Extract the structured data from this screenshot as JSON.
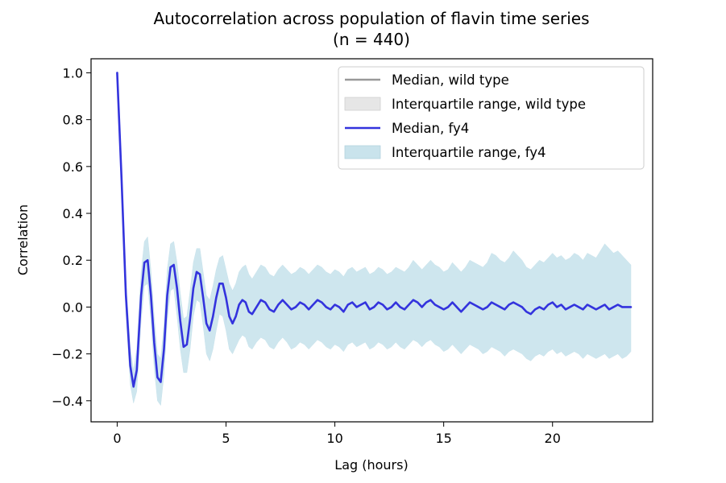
{
  "chart_data": {
    "type": "line",
    "title": "Autocorrelation across population of flavin time series",
    "subtitle": "(n = 440)",
    "xlabel": "Lag (hours)",
    "ylabel": "Correlation",
    "xlim": [
      -1.2,
      24.6
    ],
    "ylim": [
      -0.49,
      1.06
    ],
    "xticks": [
      0,
      5,
      10,
      15,
      20
    ],
    "xtick_labels": [
      "0",
      "5",
      "10",
      "15",
      "20"
    ],
    "yticks": [
      -0.4,
      -0.2,
      0.0,
      0.2,
      0.4,
      0.6,
      0.8,
      1.0
    ],
    "ytick_labels": [
      "−0.4",
      "−0.2",
      "0.0",
      "0.2",
      "0.4",
      "0.6",
      "0.8",
      "1.0"
    ],
    "grid": false,
    "legend_position": "top-right",
    "legend": [
      {
        "label": "Median, wild type",
        "kind": "line",
        "color": "#999999"
      },
      {
        "label": "Interquartile range, wild type",
        "kind": "patch",
        "color": "#e6e6e6"
      },
      {
        "label": "Median, fy4",
        "kind": "line",
        "color": "#3333dd"
      },
      {
        "label": "Interquartile range, fy4",
        "kind": "patch",
        "color": "#c9e3ec"
      }
    ],
    "series": [
      {
        "name": "Median, fy4",
        "color": "#3333dd",
        "x": [
          0,
          0.2,
          0.4,
          0.6,
          0.75,
          0.9,
          1.1,
          1.25,
          1.4,
          1.55,
          1.7,
          1.85,
          2.0,
          2.15,
          2.3,
          2.45,
          2.6,
          2.75,
          2.9,
          3.05,
          3.2,
          3.35,
          3.5,
          3.65,
          3.8,
          3.95,
          4.1,
          4.25,
          4.4,
          4.55,
          4.7,
          4.85,
          5.0,
          5.15,
          5.3,
          5.45,
          5.6,
          5.75,
          5.9,
          6.05,
          6.2,
          6.4,
          6.6,
          6.8,
          7.0,
          7.2,
          7.4,
          7.6,
          7.8,
          8.0,
          8.2,
          8.4,
          8.6,
          8.8,
          9.0,
          9.2,
          9.4,
          9.6,
          9.8,
          10.0,
          10.2,
          10.4,
          10.6,
          10.8,
          11.0,
          11.2,
          11.4,
          11.6,
          11.8,
          12.0,
          12.2,
          12.4,
          12.6,
          12.8,
          13.0,
          13.2,
          13.4,
          13.6,
          13.8,
          14.0,
          14.2,
          14.4,
          14.6,
          14.8,
          15.0,
          15.2,
          15.4,
          15.6,
          15.8,
          16.0,
          16.2,
          16.4,
          16.6,
          16.8,
          17.0,
          17.2,
          17.4,
          17.6,
          17.8,
          18.0,
          18.2,
          18.4,
          18.6,
          18.8,
          19.0,
          19.2,
          19.4,
          19.6,
          19.8,
          20.0,
          20.2,
          20.4,
          20.6,
          20.8,
          21.0,
          21.2,
          21.4,
          21.6,
          21.8,
          22.0,
          22.2,
          22.4,
          22.6,
          22.8,
          23.0,
          23.2,
          23.4,
          23.6
        ],
        "values": [
          1.0,
          0.55,
          0.05,
          -0.25,
          -0.34,
          -0.27,
          0.05,
          0.19,
          0.2,
          0.05,
          -0.15,
          -0.3,
          -0.32,
          -0.18,
          0.05,
          0.17,
          0.18,
          0.08,
          -0.06,
          -0.17,
          -0.16,
          -0.05,
          0.08,
          0.15,
          0.14,
          0.04,
          -0.07,
          -0.1,
          -0.04,
          0.04,
          0.1,
          0.1,
          0.04,
          -0.04,
          -0.07,
          -0.04,
          0.01,
          0.03,
          0.02,
          -0.02,
          -0.03,
          0.0,
          0.03,
          0.02,
          -0.01,
          -0.02,
          0.01,
          0.03,
          0.01,
          -0.01,
          0.0,
          0.02,
          0.01,
          -0.01,
          0.01,
          0.03,
          0.02,
          0.0,
          -0.01,
          0.01,
          0.0,
          -0.02,
          0.01,
          0.02,
          0.0,
          0.01,
          0.02,
          -0.01,
          0.0,
          0.02,
          0.01,
          -0.01,
          0.0,
          0.02,
          0.0,
          -0.01,
          0.01,
          0.03,
          0.02,
          0.0,
          0.02,
          0.03,
          0.01,
          0.0,
          -0.01,
          0.0,
          0.02,
          0.0,
          -0.02,
          0.0,
          0.02,
          0.01,
          0.0,
          -0.01,
          0.0,
          0.02,
          0.01,
          0.0,
          -0.01,
          0.01,
          0.02,
          0.01,
          0.0,
          -0.02,
          -0.03,
          -0.01,
          0.0,
          -0.01,
          0.01,
          0.02,
          0.0,
          0.01,
          -0.01,
          0.0,
          0.01,
          0.0,
          -0.01,
          0.01,
          0.0,
          -0.01,
          0.0,
          0.01,
          -0.01,
          0.0,
          0.01,
          0.0,
          0.0,
          0.0
        ]
      },
      {
        "name": "Interquartile range, fy4",
        "color": "#c9e3ec",
        "x": [
          0,
          0.2,
          0.4,
          0.6,
          0.75,
          0.9,
          1.1,
          1.25,
          1.4,
          1.55,
          1.7,
          1.85,
          2.0,
          2.15,
          2.3,
          2.45,
          2.6,
          2.75,
          2.9,
          3.05,
          3.2,
          3.35,
          3.5,
          3.65,
          3.8,
          3.95,
          4.1,
          4.25,
          4.4,
          4.55,
          4.7,
          4.85,
          5.0,
          5.15,
          5.3,
          5.45,
          5.6,
          5.75,
          5.9,
          6.05,
          6.2,
          6.4,
          6.6,
          6.8,
          7.0,
          7.2,
          7.4,
          7.6,
          7.8,
          8.0,
          8.2,
          8.4,
          8.6,
          8.8,
          9.0,
          9.2,
          9.4,
          9.6,
          9.8,
          10.0,
          10.2,
          10.4,
          10.6,
          10.8,
          11.0,
          11.2,
          11.4,
          11.6,
          11.8,
          12.0,
          12.2,
          12.4,
          12.6,
          12.8,
          13.0,
          13.2,
          13.4,
          13.6,
          13.8,
          14.0,
          14.2,
          14.4,
          14.6,
          14.8,
          15.0,
          15.2,
          15.4,
          15.6,
          15.8,
          16.0,
          16.2,
          16.4,
          16.6,
          16.8,
          17.0,
          17.2,
          17.4,
          17.6,
          17.8,
          18.0,
          18.2,
          18.4,
          18.6,
          18.8,
          19.0,
          19.2,
          19.4,
          19.6,
          19.8,
          20.0,
          20.2,
          20.4,
          20.6,
          20.8,
          21.0,
          21.2,
          21.4,
          21.6,
          21.8,
          22.0,
          22.2,
          22.4,
          22.6,
          22.8,
          23.0,
          23.2,
          23.4,
          23.6
        ],
        "upper": [
          1.0,
          0.6,
          0.12,
          -0.17,
          -0.27,
          -0.18,
          0.15,
          0.28,
          0.3,
          0.16,
          -0.04,
          -0.2,
          -0.22,
          -0.07,
          0.16,
          0.27,
          0.28,
          0.19,
          0.06,
          -0.05,
          -0.04,
          0.07,
          0.19,
          0.25,
          0.25,
          0.15,
          0.05,
          0.03,
          0.09,
          0.16,
          0.21,
          0.22,
          0.16,
          0.1,
          0.07,
          0.1,
          0.15,
          0.17,
          0.18,
          0.14,
          0.12,
          0.15,
          0.18,
          0.17,
          0.14,
          0.13,
          0.16,
          0.18,
          0.16,
          0.14,
          0.15,
          0.17,
          0.16,
          0.14,
          0.16,
          0.18,
          0.17,
          0.15,
          0.14,
          0.16,
          0.15,
          0.13,
          0.16,
          0.17,
          0.15,
          0.16,
          0.17,
          0.14,
          0.15,
          0.17,
          0.16,
          0.14,
          0.15,
          0.17,
          0.16,
          0.15,
          0.17,
          0.2,
          0.18,
          0.16,
          0.18,
          0.2,
          0.18,
          0.17,
          0.15,
          0.16,
          0.19,
          0.17,
          0.15,
          0.17,
          0.2,
          0.19,
          0.18,
          0.17,
          0.19,
          0.23,
          0.22,
          0.2,
          0.19,
          0.21,
          0.24,
          0.22,
          0.2,
          0.17,
          0.16,
          0.18,
          0.2,
          0.19,
          0.21,
          0.23,
          0.21,
          0.22,
          0.2,
          0.21,
          0.23,
          0.22,
          0.2,
          0.23,
          0.22,
          0.21,
          0.24,
          0.27,
          0.25,
          0.23,
          0.24,
          0.22,
          0.2,
          0.18
        ],
        "lower": [
          1.0,
          0.5,
          -0.02,
          -0.33,
          -0.41,
          -0.36,
          -0.06,
          0.09,
          0.1,
          -0.06,
          -0.26,
          -0.4,
          -0.42,
          -0.29,
          -0.06,
          0.07,
          0.08,
          -0.04,
          -0.18,
          -0.28,
          -0.28,
          -0.18,
          -0.04,
          0.03,
          0.02,
          -0.08,
          -0.2,
          -0.23,
          -0.18,
          -0.1,
          -0.03,
          -0.04,
          -0.1,
          -0.18,
          -0.2,
          -0.17,
          -0.14,
          -0.12,
          -0.13,
          -0.17,
          -0.18,
          -0.15,
          -0.13,
          -0.14,
          -0.17,
          -0.18,
          -0.15,
          -0.13,
          -0.15,
          -0.18,
          -0.17,
          -0.15,
          -0.16,
          -0.18,
          -0.16,
          -0.14,
          -0.15,
          -0.17,
          -0.18,
          -0.16,
          -0.17,
          -0.19,
          -0.16,
          -0.15,
          -0.17,
          -0.16,
          -0.15,
          -0.18,
          -0.17,
          -0.15,
          -0.16,
          -0.18,
          -0.17,
          -0.15,
          -0.17,
          -0.18,
          -0.16,
          -0.14,
          -0.15,
          -0.17,
          -0.15,
          -0.14,
          -0.16,
          -0.17,
          -0.19,
          -0.18,
          -0.16,
          -0.18,
          -0.2,
          -0.18,
          -0.16,
          -0.17,
          -0.18,
          -0.2,
          -0.19,
          -0.17,
          -0.18,
          -0.19,
          -0.21,
          -0.19,
          -0.18,
          -0.19,
          -0.2,
          -0.22,
          -0.23,
          -0.21,
          -0.2,
          -0.21,
          -0.19,
          -0.18,
          -0.2,
          -0.19,
          -0.21,
          -0.2,
          -0.19,
          -0.2,
          -0.22,
          -0.2,
          -0.21,
          -0.22,
          -0.21,
          -0.2,
          -0.22,
          -0.21,
          -0.2,
          -0.22,
          -0.21,
          -0.19
        ]
      },
      {
        "name": "Median, wild type",
        "color": "#999999",
        "x": [],
        "values": []
      },
      {
        "name": "Interquartile range, wild type",
        "color": "#e6e6e6",
        "x": [],
        "upper": [],
        "lower": []
      }
    ]
  }
}
